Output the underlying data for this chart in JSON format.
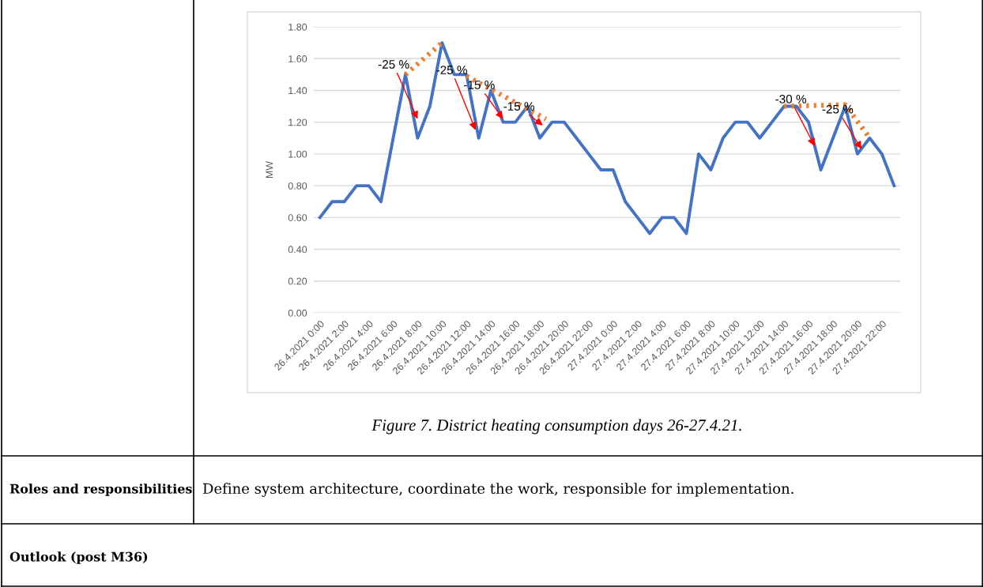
{
  "chart_data": {
    "type": "line",
    "ylabel": "MW",
    "x": [
      "2021-04-26T00:00",
      "2021-04-26T01:00",
      "2021-04-26T02:00",
      "2021-04-26T03:00",
      "2021-04-26T04:00",
      "2021-04-26T05:00",
      "2021-04-26T06:00",
      "2021-04-26T07:00",
      "2021-04-26T08:00",
      "2021-04-26T09:00",
      "2021-04-26T10:00",
      "2021-04-26T11:00",
      "2021-04-26T12:00",
      "2021-04-26T13:00",
      "2021-04-26T14:00",
      "2021-04-26T15:00",
      "2021-04-26T16:00",
      "2021-04-26T17:00",
      "2021-04-26T18:00",
      "2021-04-26T19:00",
      "2021-04-26T20:00",
      "2021-04-26T21:00",
      "2021-04-26T22:00",
      "2021-04-26T23:00",
      "2021-04-27T00:00",
      "2021-04-27T01:00",
      "2021-04-27T02:00",
      "2021-04-27T03:00",
      "2021-04-27T04:00",
      "2021-04-27T05:00",
      "2021-04-27T06:00",
      "2021-04-27T07:00",
      "2021-04-27T08:00",
      "2021-04-27T09:00",
      "2021-04-27T10:00",
      "2021-04-27T11:00",
      "2021-04-27T12:00",
      "2021-04-27T13:00",
      "2021-04-27T14:00",
      "2021-04-27T15:00",
      "2021-04-27T16:00",
      "2021-04-27T17:00",
      "2021-04-27T18:00",
      "2021-04-27T19:00",
      "2021-04-27T20:00",
      "2021-04-27T21:00",
      "2021-04-27T22:00",
      "2021-04-27T23:00"
    ],
    "series": [
      {
        "color": "#4472c4",
        "values": [
          0.6,
          0.7,
          0.7,
          0.8,
          0.8,
          0.7,
          1.1,
          1.5,
          1.1,
          1.3,
          1.7,
          1.5,
          1.5,
          1.1,
          1.4,
          1.2,
          1.2,
          1.3,
          1.1,
          1.2,
          1.2,
          1.1,
          1.0,
          0.9,
          0.9,
          0.7,
          0.6,
          0.5,
          0.6,
          0.6,
          0.5,
          1.0,
          0.9,
          1.1,
          1.2,
          1.2,
          1.1,
          1.2,
          1.3,
          1.3,
          1.2,
          0.9,
          1.1,
          1.3,
          1.0,
          1.1,
          1.0,
          0.8
        ]
      },
      {
        "color": "#ed7d31",
        "line_style": "dotted",
        "x": [
          "2021-04-26T07:00",
          "2021-04-26T10:00"
        ],
        "values": [
          1.5,
          1.7
        ]
      },
      {
        "color": "#ed7d31",
        "line_style": "dotted",
        "x": [
          "2021-04-26T12:00",
          "2021-04-26T18:30"
        ],
        "values": [
          1.49,
          1.22
        ]
      },
      {
        "color": "#ed7d31",
        "line_style": "dotted",
        "x": [
          "2021-04-27T14:00",
          "2021-04-27T19:00",
          "2021-04-27T21:00"
        ],
        "values": [
          1.3,
          1.31,
          1.1
        ]
      }
    ],
    "xlim": [
      "2021-04-25T23:30",
      "2021-04-27T23:30"
    ],
    "xticks": [
      {
        "value": "2021-04-26T00:00",
        "label": "26.4.2021 0:00"
      },
      {
        "value": "2021-04-26T02:00",
        "label": "26.4.2021 2:00"
      },
      {
        "value": "2021-04-26T04:00",
        "label": "26.4.2021 4:00"
      },
      {
        "value": "2021-04-26T06:00",
        "label": "26.4.2021 6:00"
      },
      {
        "value": "2021-04-26T08:00",
        "label": "26.4.2021 8:00"
      },
      {
        "value": "2021-04-26T10:00",
        "label": "26.4.2021 10:00"
      },
      {
        "value": "2021-04-26T12:00",
        "label": "26.4.2021 12:00"
      },
      {
        "value": "2021-04-26T14:00",
        "label": "26.4.2021 14:00"
      },
      {
        "value": "2021-04-26T16:00",
        "label": "26.4.2021 16:00"
      },
      {
        "value": "2021-04-26T18:00",
        "label": "26.4.2021 18:00"
      },
      {
        "value": "2021-04-26T20:00",
        "label": "26.4.2021 20:00"
      },
      {
        "value": "2021-04-26T22:00",
        "label": "26.4.2021 22:00"
      },
      {
        "value": "2021-04-27T00:00",
        "label": "27.4.2021 0:00"
      },
      {
        "value": "2021-04-27T02:00",
        "label": "27.4.2021 2:00"
      },
      {
        "value": "2021-04-27T04:00",
        "label": "27.4.2021 4:00"
      },
      {
        "value": "2021-04-27T06:00",
        "label": "27.4.2021 6:00"
      },
      {
        "value": "2021-04-27T08:00",
        "label": "27.4.2021 8:00"
      },
      {
        "value": "2021-04-27T10:00",
        "label": "27.4.2021 10:00"
      },
      {
        "value": "2021-04-27T12:00",
        "label": "27.4.2021 12:00"
      },
      {
        "value": "2021-04-27T14:00",
        "label": "27.4.2021 14:00"
      },
      {
        "value": "2021-04-27T16:00",
        "label": "27.4.2021 16:00"
      },
      {
        "value": "2021-04-27T18:00",
        "label": "27.4.2021 18:00"
      },
      {
        "value": "2021-04-27T20:00",
        "label": "27.4.2021 20:00"
      },
      {
        "value": "2021-04-27T22:00",
        "label": "27.4.2021 22:00"
      }
    ],
    "ylim": [
      0,
      1.8
    ],
    "yticks": [
      {
        "value": 0,
        "label": "0.00"
      },
      {
        "value": 0.2,
        "label": "0.20"
      },
      {
        "value": 0.4,
        "label": "0.40"
      },
      {
        "value": 0.6,
        "label": "0.60"
      },
      {
        "value": 0.8,
        "label": "0.80"
      },
      {
        "value": 1.0,
        "label": "1.00"
      },
      {
        "value": 1.2,
        "label": "1.20"
      },
      {
        "value": 1.4,
        "label": "1.40"
      },
      {
        "value": 1.6,
        "label": "1.60"
      },
      {
        "value": 1.8,
        "label": "1.80"
      }
    ],
    "grid": "y",
    "legend": false,
    "marker": "none",
    "annotations": [
      {
        "text": "-25 %",
        "x": "2021-04-26T08:00",
        "y": 1.22
      },
      {
        "text": "-25 %",
        "x": "2021-04-26T12:45",
        "y": 1.15
      },
      {
        "text": "-15 %",
        "x": "2021-04-26T15:00",
        "y": 1.22
      },
      {
        "text": "-15 %",
        "x": "2021-04-26T18:15",
        "y": 1.18
      },
      {
        "text": "-30 %",
        "x": "2021-04-27T16:30",
        "y": 1.05
      },
      {
        "text": "-25 %",
        "x": "2021-04-27T20:20",
        "y": 1.03
      },
      "Figure 7. District heating consumption days 26-27.4.21.",
      "Roles and responsibilities",
      "Define system architecture, coordinate the work, responsible for implementation.",
      "Outlook (post M36)"
    ]
  }
}
